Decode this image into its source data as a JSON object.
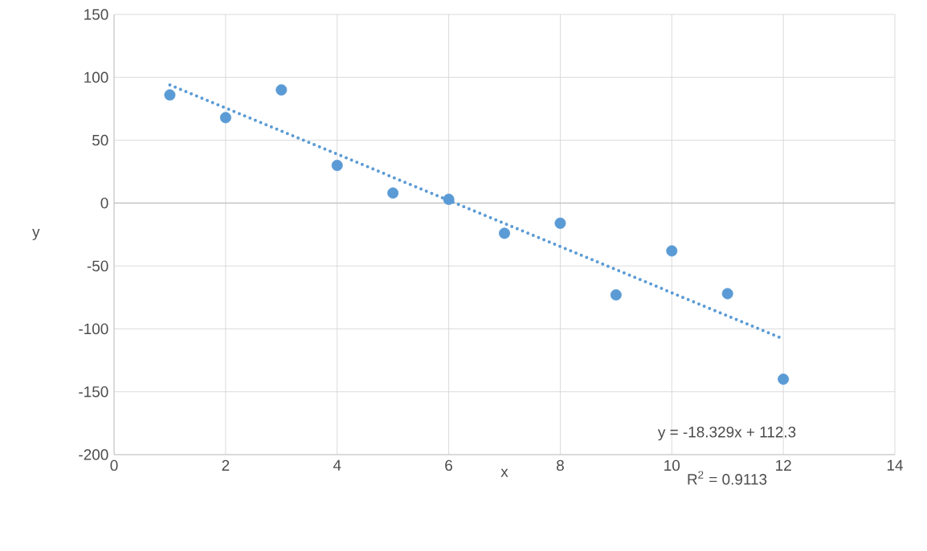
{
  "chart_data": {
    "type": "scatter",
    "xlabel": "x",
    "ylabel": "y",
    "xlim": [
      0,
      14
    ],
    "xticks": [
      0,
      2,
      4,
      6,
      8,
      10,
      12,
      14
    ],
    "ylim": [
      -200,
      150
    ],
    "yticks": [
      -200,
      -150,
      -100,
      -50,
      0,
      50,
      100,
      150
    ],
    "grid": true,
    "marker": "circle",
    "x": [
      1,
      2,
      3,
      4,
      5,
      6,
      7,
      8,
      9,
      10,
      11,
      12
    ],
    "series": [
      {
        "color": "#5b9bd5",
        "values": [
          86,
          68,
          90,
          30,
          8,
          3,
          -24,
          -16,
          -73,
          -38,
          -72,
          -140
        ]
      },
      {
        "type": "line",
        "color": "#5b9bd5",
        "line_style": "dotted",
        "marker": "none",
        "x": [
          1,
          12
        ],
        "values": [
          94,
          -108
        ]
      }
    ],
    "annotations": [
      "y = -18.329x + 112.3",
      "R$^{2}$ = 0.9113"
    ]
  }
}
